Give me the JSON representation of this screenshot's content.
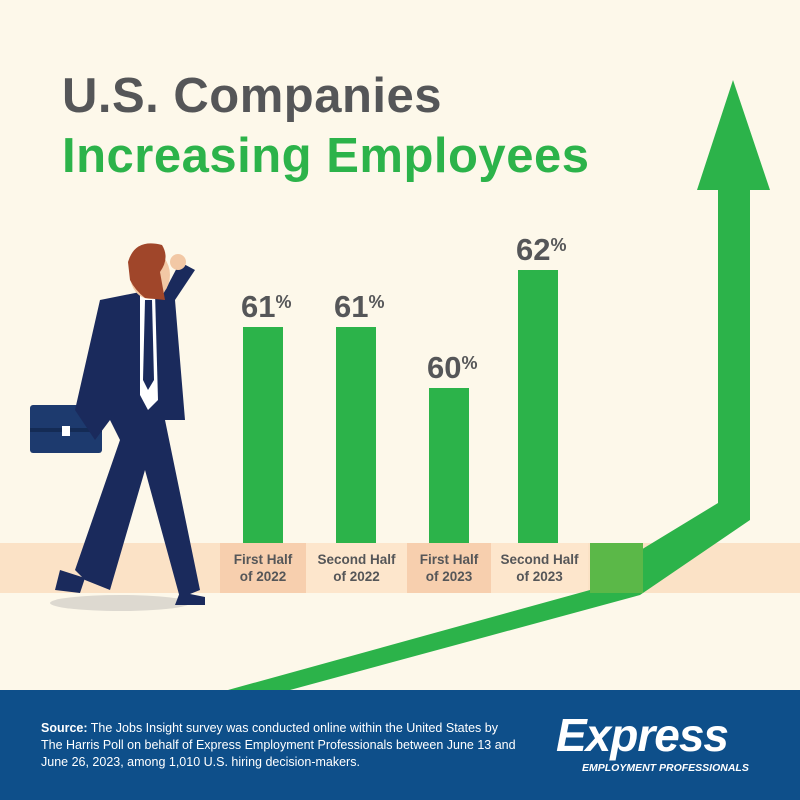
{
  "title": {
    "line1": "U.S. Companies",
    "line2": "Increasing Employees"
  },
  "colors": {
    "bar": "#2cb34a",
    "title_gray": "#555658",
    "title_green": "#2cb34a",
    "footer": "#0e4f8a",
    "background": "#fdf8ea"
  },
  "chart_data": {
    "type": "bar",
    "title": "U.S. Companies Increasing Employees",
    "categories": [
      "First Half of 2022",
      "Second Half of 2022",
      "First Half of 2023",
      "Second Half of 2023"
    ],
    "category_lines": [
      [
        "First Half",
        "of 2022"
      ],
      [
        "Second Half",
        "of 2022"
      ],
      [
        "First Half",
        "of 2023"
      ],
      [
        "Second Half",
        "of 2023"
      ]
    ],
    "values": [
      61,
      61,
      60,
      62
    ],
    "data_labels": [
      "61",
      "61",
      "60",
      "62"
    ],
    "unit": "%",
    "xlabel": "",
    "ylabel": "",
    "grid": false
  },
  "footer": {
    "source_label": "Source:",
    "source_text": " The Jobs Insight survey was conducted online within the United States by The Harris Poll on behalf of Express Employment Professionals between June 13 and June 26, 2023, among 1,010 U.S. hiring decision-makers.",
    "logo": {
      "word": "Express",
      "sub": "EMPLOYMENT PROFESSIONALS"
    }
  }
}
